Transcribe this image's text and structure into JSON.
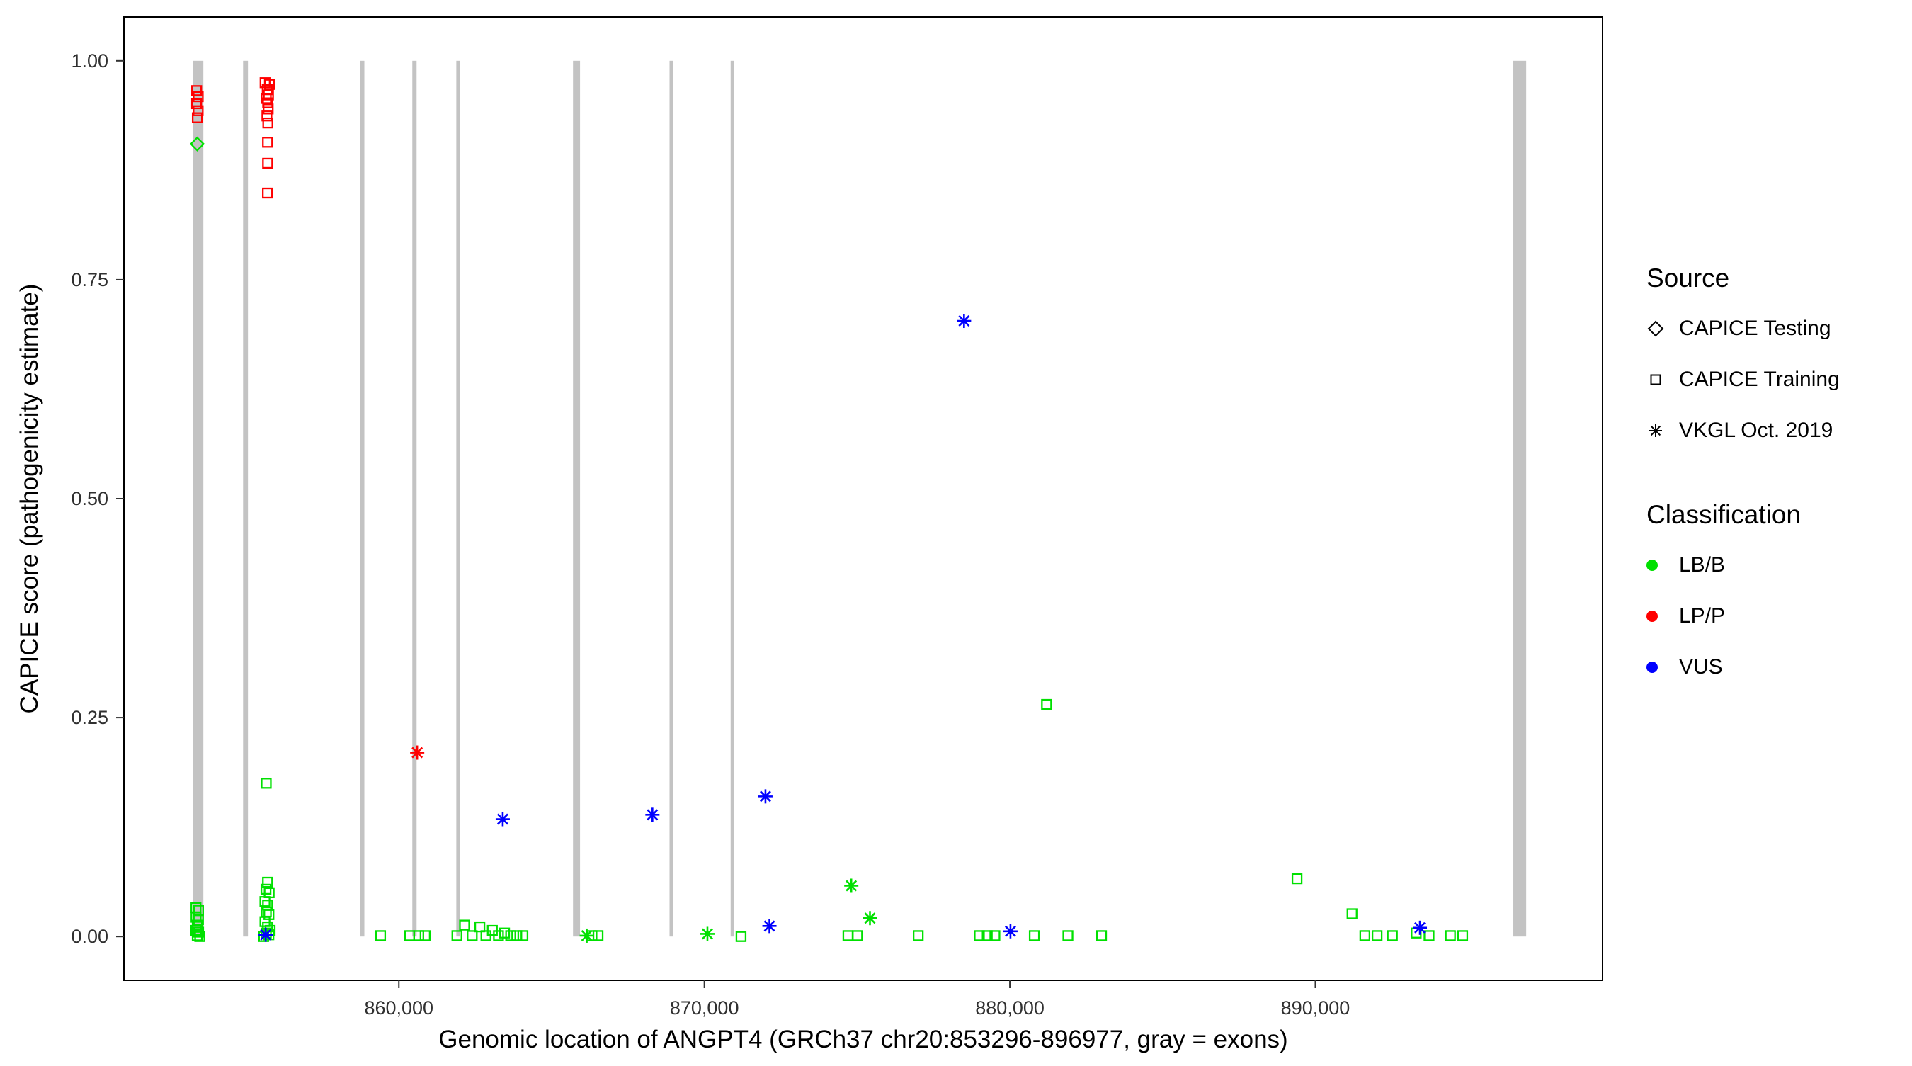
{
  "legend": {
    "source": {
      "title": "Source",
      "items": [
        {
          "label": "CAPICE Testing",
          "shape": "diamond"
        },
        {
          "label": "CAPICE Training",
          "shape": "square"
        },
        {
          "label": "VKGL Oct. 2019",
          "shape": "asterisk"
        }
      ]
    },
    "classification": {
      "title": "Classification",
      "items": [
        {
          "label": "LB/B",
          "color": "#00E000"
        },
        {
          "label": "LP/P",
          "color": "#FF0000"
        },
        {
          "label": "VUS",
          "color": "#0000FF"
        }
      ]
    }
  },
  "chart_data": {
    "type": "scatter",
    "title": "",
    "xlabel": "Genomic location of ANGPT4 (GRCh37 chr20:853296-896977, gray = exons)",
    "ylabel": "CAPICE score (pathogenicity estimate)",
    "xlim": [
      851000,
      899400
    ],
    "ylim": [
      -0.05,
      1.05
    ],
    "grid": false,
    "legend_position": "right",
    "x_ticks": [
      {
        "value": 860000,
        "label": "860,000"
      },
      {
        "value": 870000,
        "label": "870,000"
      },
      {
        "value": 880000,
        "label": "880,000"
      },
      {
        "value": 890000,
        "label": "890,000"
      }
    ],
    "y_ticks": [
      {
        "value": 0.0,
        "label": "0.00"
      },
      {
        "value": 0.25,
        "label": "0.25"
      },
      {
        "value": 0.5,
        "label": "0.50"
      },
      {
        "value": 0.75,
        "label": "0.75"
      },
      {
        "value": 1.0,
        "label": "1.00"
      }
    ],
    "exon_color": "#C3C3C3",
    "exon_ymin": 0,
    "exon_ymax": 1,
    "exons": [
      [
        853250,
        853600
      ],
      [
        854900,
        855060
      ],
      [
        858740,
        858870
      ],
      [
        860440,
        860580
      ],
      [
        861880,
        862000
      ],
      [
        865700,
        865930
      ],
      [
        868860,
        868980
      ],
      [
        870860,
        870980
      ],
      [
        896480,
        896900
      ]
    ],
    "classification_colors": {
      "LB/B": "#00E000",
      "LP/P": "#FF0000",
      "VUS": "#0000FF"
    },
    "series": [
      {
        "name": "CAPICE Testing",
        "shape": "diamond",
        "points": [
          {
            "x": 853400,
            "y": 0.905,
            "c": "LB/B"
          }
        ]
      },
      {
        "name": "CAPICE Training",
        "shape": "square",
        "points": [
          {
            "x": 853380,
            "y": 0.966,
            "c": "LP/P"
          },
          {
            "x": 853432,
            "y": 0.959,
            "c": "LP/P"
          },
          {
            "x": 853378,
            "y": 0.951,
            "c": "LP/P"
          },
          {
            "x": 853430,
            "y": 0.943,
            "c": "LP/P"
          },
          {
            "x": 853402,
            "y": 0.935,
            "c": "LP/P"
          },
          {
            "x": 855620,
            "y": 0.975,
            "c": "LP/P"
          },
          {
            "x": 855762,
            "y": 0.973,
            "c": "LP/P"
          },
          {
            "x": 855690,
            "y": 0.967,
            "c": "LP/P"
          },
          {
            "x": 855732,
            "y": 0.961,
            "c": "LP/P"
          },
          {
            "x": 855658,
            "y": 0.957,
            "c": "LP/P"
          },
          {
            "x": 855705,
            "y": 0.952,
            "c": "LP/P"
          },
          {
            "x": 855722,
            "y": 0.945,
            "c": "LP/P"
          },
          {
            "x": 855680,
            "y": 0.937,
            "c": "LP/P"
          },
          {
            "x": 855710,
            "y": 0.929,
            "c": "LP/P"
          },
          {
            "x": 855700,
            "y": 0.907,
            "c": "LP/P"
          },
          {
            "x": 855702,
            "y": 0.883,
            "c": "LP/P"
          },
          {
            "x": 855698,
            "y": 0.849,
            "c": "LP/P"
          },
          {
            "x": 853358,
            "y": 0.033,
            "c": "LB/B"
          },
          {
            "x": 853442,
            "y": 0.03,
            "c": "LB/B"
          },
          {
            "x": 853360,
            "y": 0.022,
            "c": "LB/B"
          },
          {
            "x": 853440,
            "y": 0.019,
            "c": "LB/B"
          },
          {
            "x": 853400,
            "y": 0.013,
            "c": "LB/B"
          },
          {
            "x": 853356,
            "y": 0.007,
            "c": "LB/B"
          },
          {
            "x": 853444,
            "y": 0.005,
            "c": "LB/B"
          },
          {
            "x": 853400,
            "y": 0.001,
            "c": "LB/B"
          },
          {
            "x": 853482,
            "y": 0.0,
            "c": "LB/B"
          },
          {
            "x": 855658,
            "y": 0.175,
            "c": "LB/B"
          },
          {
            "x": 855700,
            "y": 0.062,
            "c": "LB/B"
          },
          {
            "x": 855650,
            "y": 0.054,
            "c": "LB/B"
          },
          {
            "x": 855755,
            "y": 0.05,
            "c": "LB/B"
          },
          {
            "x": 855615,
            "y": 0.04,
            "c": "LB/B"
          },
          {
            "x": 855702,
            "y": 0.036,
            "c": "LB/B"
          },
          {
            "x": 855660,
            "y": 0.028,
            "c": "LB/B"
          },
          {
            "x": 855746,
            "y": 0.025,
            "c": "LB/B"
          },
          {
            "x": 855616,
            "y": 0.017,
            "c": "LB/B"
          },
          {
            "x": 855700,
            "y": 0.011,
            "c": "LB/B"
          },
          {
            "x": 855786,
            "y": 0.007,
            "c": "LB/B"
          },
          {
            "x": 855660,
            "y": 0.004,
            "c": "LB/B"
          },
          {
            "x": 855744,
            "y": 0.002,
            "c": "LB/B"
          },
          {
            "x": 855574,
            "y": 0.0,
            "c": "LB/B"
          },
          {
            "x": 859400,
            "y": 0.001,
            "c": "LB/B"
          },
          {
            "x": 860350,
            "y": 0.001,
            "c": "LB/B"
          },
          {
            "x": 860650,
            "y": 0.001,
            "c": "LB/B"
          },
          {
            "x": 860860,
            "y": 0.001,
            "c": "LB/B"
          },
          {
            "x": 861900,
            "y": 0.001,
            "c": "LB/B"
          },
          {
            "x": 862150,
            "y": 0.013,
            "c": "LB/B"
          },
          {
            "x": 862400,
            "y": 0.001,
            "c": "LB/B"
          },
          {
            "x": 862650,
            "y": 0.011,
            "c": "LB/B"
          },
          {
            "x": 862850,
            "y": 0.001,
            "c": "LB/B"
          },
          {
            "x": 863060,
            "y": 0.007,
            "c": "LB/B"
          },
          {
            "x": 863260,
            "y": 0.001,
            "c": "LB/B"
          },
          {
            "x": 863460,
            "y": 0.004,
            "c": "LB/B"
          },
          {
            "x": 863660,
            "y": 0.001,
            "c": "LB/B"
          },
          {
            "x": 863860,
            "y": 0.001,
            "c": "LB/B"
          },
          {
            "x": 864060,
            "y": 0.001,
            "c": "LB/B"
          },
          {
            "x": 866320,
            "y": 0.001,
            "c": "LB/B"
          },
          {
            "x": 866520,
            "y": 0.001,
            "c": "LB/B"
          },
          {
            "x": 871200,
            "y": 0.0,
            "c": "LB/B"
          },
          {
            "x": 874700,
            "y": 0.001,
            "c": "LB/B"
          },
          {
            "x": 875010,
            "y": 0.001,
            "c": "LB/B"
          },
          {
            "x": 877000,
            "y": 0.001,
            "c": "LB/B"
          },
          {
            "x": 879000,
            "y": 0.001,
            "c": "LB/B"
          },
          {
            "x": 879260,
            "y": 0.001,
            "c": "LB/B"
          },
          {
            "x": 879510,
            "y": 0.001,
            "c": "LB/B"
          },
          {
            "x": 880800,
            "y": 0.001,
            "c": "LB/B"
          },
          {
            "x": 881200,
            "y": 0.265,
            "c": "LB/B"
          },
          {
            "x": 881900,
            "y": 0.001,
            "c": "LB/B"
          },
          {
            "x": 883000,
            "y": 0.001,
            "c": "LB/B"
          },
          {
            "x": 889400,
            "y": 0.066,
            "c": "LB/B"
          },
          {
            "x": 891200,
            "y": 0.026,
            "c": "LB/B"
          },
          {
            "x": 891620,
            "y": 0.001,
            "c": "LB/B"
          },
          {
            "x": 892020,
            "y": 0.001,
            "c": "LB/B"
          },
          {
            "x": 892520,
            "y": 0.001,
            "c": "LB/B"
          },
          {
            "x": 893300,
            "y": 0.004,
            "c": "LB/B"
          },
          {
            "x": 893720,
            "y": 0.001,
            "c": "LB/B"
          },
          {
            "x": 894420,
            "y": 0.001,
            "c": "LB/B"
          },
          {
            "x": 894820,
            "y": 0.001,
            "c": "LB/B"
          }
        ]
      },
      {
        "name": "VKGL Oct. 2019",
        "shape": "asterisk",
        "points": [
          {
            "x": 860600,
            "y": 0.21,
            "c": "LP/P"
          },
          {
            "x": 855640,
            "y": 0.002,
            "c": "VUS"
          },
          {
            "x": 863400,
            "y": 0.134,
            "c": "VUS"
          },
          {
            "x": 868300,
            "y": 0.139,
            "c": "VUS"
          },
          {
            "x": 872000,
            "y": 0.16,
            "c": "VUS"
          },
          {
            "x": 872130,
            "y": 0.012,
            "c": "VUS"
          },
          {
            "x": 878500,
            "y": 0.703,
            "c": "VUS"
          },
          {
            "x": 880020,
            "y": 0.006,
            "c": "VUS"
          },
          {
            "x": 893420,
            "y": 0.01,
            "c": "VUS"
          },
          {
            "x": 866150,
            "y": 0.001,
            "c": "LB/B"
          },
          {
            "x": 870100,
            "y": 0.003,
            "c": "LB/B"
          },
          {
            "x": 874810,
            "y": 0.058,
            "c": "LB/B"
          },
          {
            "x": 875420,
            "y": 0.021,
            "c": "LB/B"
          }
        ]
      }
    ]
  }
}
